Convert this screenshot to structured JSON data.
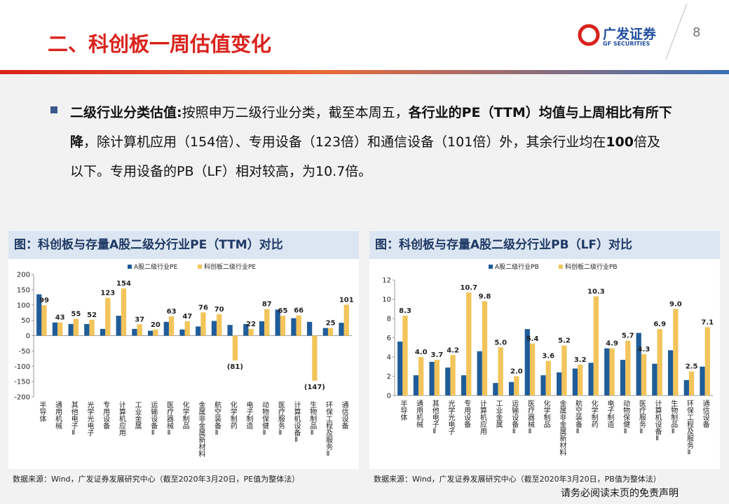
{
  "header": {
    "title": "二、科创板一周估值变化",
    "logo": "广发证券",
    "logo_en": "GF SECURITIES",
    "page": "8"
  },
  "body": {
    "segments": [
      {
        "text": "二级行业分类估值:",
        "bold": true
      },
      {
        "text": "按照申万二级行业分类，截至本周五，",
        "bold": false
      },
      {
        "text": "各行业的PE（TTM）均值与上周相比有所下降",
        "bold": true
      },
      {
        "text": "，除计算机应用（154倍）、专用设备（123倍）和通信设备（101倍）外，其余行业均在",
        "bold": false
      },
      {
        "text": "100",
        "bold": true
      },
      {
        "text": "倍及以下。专用设备的PB（LF）相对较高，为10.7倍。",
        "bold": false
      }
    ]
  },
  "chart_data": [
    {
      "type": "bar",
      "title": "图：科创板与存量A股二级分行业PE（TTM）对比",
      "source": "数据来源：Wind，广发证券发展研究中心（截至2020年3月20日，PE值为整体法）",
      "categories": [
        "半导体",
        "通用机械",
        "其他电子Ⅱ",
        "光学光电子",
        "专用设备",
        "计算机应用",
        "工业金属",
        "运输设备Ⅱ",
        "医疗器械Ⅱ",
        "化学制品",
        "金属非金属新材料",
        "航空装备Ⅱ",
        "化学制药",
        "电子制造",
        "动物保健Ⅱ",
        "医疗服务Ⅱ",
        "计算机设备Ⅱ",
        "生物制品Ⅱ",
        "环保工程及服务Ⅱ",
        "通信设备"
      ],
      "series": [
        {
          "name": "A股二级行业PE",
          "color": "#1f5c99",
          "values": [
            135,
            43,
            38,
            38,
            22,
            65,
            22,
            16,
            45,
            20,
            30,
            48,
            35,
            38,
            47,
            85,
            57,
            45,
            25,
            42
          ]
        },
        {
          "name": "科创板二级行业PE",
          "color": "#f2c45a",
          "values": [
            99,
            43,
            55,
            52,
            123,
            154,
            37,
            20,
            63,
            47,
            76,
            70,
            -81,
            22,
            87,
            65,
            66,
            -147,
            25,
            101
          ],
          "value_labels": [
            "99",
            "43",
            "55",
            "52",
            "123",
            "154",
            "37",
            "20",
            "63",
            "47",
            "76",
            "70",
            "(81)",
            "22",
            "87",
            "65",
            "66",
            "(147)",
            "25",
            "101"
          ]
        }
      ],
      "ylim": [
        -200,
        200
      ],
      "yticks": [
        -200,
        -150,
        -100,
        -50,
        0,
        50,
        100,
        150,
        200
      ]
    },
    {
      "type": "bar",
      "title": "图：科创板与存量A股二级分行业PB（LF）对比",
      "source": "数据来源：Wind，广发证券发展研究中心（截至2020年3月20日，PB值为整体法）",
      "categories": [
        "半导体",
        "通用机械",
        "其他电子Ⅱ",
        "光学光电子",
        "专用设备",
        "计算机应用",
        "工业金属",
        "运输设备Ⅱ",
        "医疗器械Ⅱ",
        "化学制品",
        "金属非金属新材料",
        "航空装备Ⅱ",
        "化学制药",
        "电子制造",
        "动物保健Ⅱ",
        "医疗服务Ⅱ",
        "计算机设备Ⅱ",
        "生物制品Ⅱ",
        "环保工程及服务Ⅱ",
        "通信设备"
      ],
      "series": [
        {
          "name": "A股二级行业PB",
          "color": "#1f5c99",
          "values": [
            5.6,
            2.1,
            3.5,
            2.9,
            2.1,
            4.6,
            1.3,
            1.4,
            6.9,
            2.1,
            2.4,
            2.8,
            3.4,
            4.9,
            3.7,
            6.5,
            3.3,
            4.7,
            1.6,
            3.0
          ]
        },
        {
          "name": "科创板二级行业PB",
          "color": "#f2c45a",
          "values": [
            8.3,
            4.0,
            3.7,
            4.2,
            10.7,
            9.8,
            5.0,
            2.0,
            5.4,
            3.6,
            5.2,
            3.2,
            10.3,
            4.9,
            5.7,
            4.3,
            6.9,
            9.0,
            2.5,
            7.1
          ],
          "value_labels": [
            "8.3",
            "4.0",
            "3.7",
            "4.2",
            "10.7",
            "9.8",
            "5.0",
            "2.0",
            "5.4",
            "3.6",
            "5.2",
            "3.2",
            "10.3",
            "4.9",
            "5.7",
            "4.3",
            "6.9",
            "9.0",
            "2.5",
            "7.1"
          ]
        }
      ],
      "ylim": [
        0,
        12
      ],
      "yticks": [
        0,
        2,
        4,
        6,
        8,
        10,
        12
      ]
    }
  ],
  "footer": "请务必阅读末页的免责声明"
}
